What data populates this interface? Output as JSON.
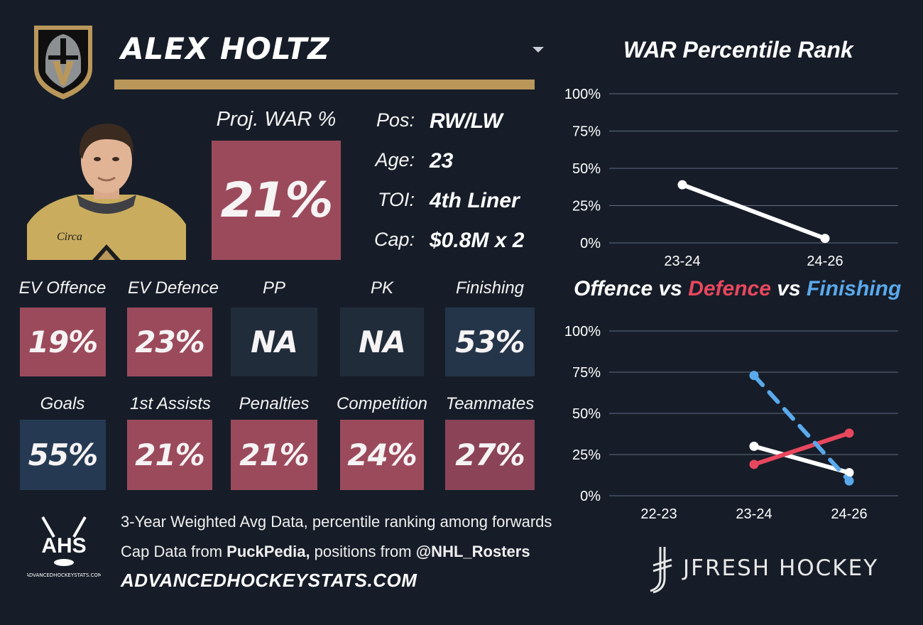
{
  "player": {
    "name": "ALEX HOLTZ",
    "projected_war_label": "Proj. WAR %",
    "projected_war_value": "21%",
    "info": [
      {
        "label": "Pos:",
        "value": "RW/LW"
      },
      {
        "label": "Age:",
        "value": "23"
      },
      {
        "label": "TOI:",
        "value": "4th Liner"
      },
      {
        "label": "Cap:",
        "value": "$0.8M x 2"
      }
    ]
  },
  "stats_row1": [
    {
      "label": "EV Offence",
      "value": "19%",
      "color": "#9b4a5c"
    },
    {
      "label": "EV Defence",
      "value": "23%",
      "color": "#9b4a5c"
    },
    {
      "label": "PP",
      "value": "NA",
      "color": "#212c3a"
    },
    {
      "label": "PK",
      "value": "NA",
      "color": "#212c3a"
    },
    {
      "label": "Finishing",
      "value": "53%",
      "color": "#243449"
    }
  ],
  "stats_row2": [
    {
      "label": "Goals",
      "value": "55%",
      "color": "#253a52"
    },
    {
      "label": "1st Assists",
      "value": "21%",
      "color": "#9b4a5c"
    },
    {
      "label": "Penalties",
      "value": "21%",
      "color": "#9b4a5c"
    },
    {
      "label": "Competition",
      "value": "24%",
      "color": "#9b4a5c"
    },
    {
      "label": "Teammates",
      "value": "27%",
      "color": "#8a4357"
    }
  ],
  "footer": {
    "line1": "3-Year Weighted Avg Data, percentile ranking among forwards",
    "line2_prefix": "Cap Data from ",
    "line2_bold1": "PuckPedia,",
    "line2_mid": " positions from ",
    "line2_bold2": "@NHL_Rosters",
    "site": "ADVANCEDHOCKEYSTATS.COM",
    "ahs_logo_text": "AHS",
    "ahs_logo_sub": "ADVANCEDHOCKEYSTATS.COM",
    "brand": "JFRESH HOCKEY"
  },
  "colors": {
    "background": "#161d28",
    "gold": "#b9975b",
    "offence_line": "#ffffff",
    "defence_line": "#e8475e",
    "finishing_line": "#5aa9ec"
  },
  "chart_data": [
    {
      "type": "line",
      "title": "WAR Percentile Rank",
      "categories": [
        "23-24",
        "24-26"
      ],
      "series": [
        {
          "values": [
            39,
            3
          ],
          "color": "#ffffff"
        }
      ],
      "ylim": [
        0,
        100
      ],
      "yticks": [
        "0%",
        "25%",
        "50%",
        "75%",
        "100%"
      ],
      "grid": true
    },
    {
      "type": "line",
      "title_parts": [
        {
          "text": "Offence",
          "color": "#ffffff"
        },
        {
          "text": " vs ",
          "color": "#ffffff"
        },
        {
          "text": "Defence",
          "color": "#e8475e"
        },
        {
          "text": " vs ",
          "color": "#ffffff"
        },
        {
          "text": "Finishing",
          "color": "#5aa9ec"
        }
      ],
      "categories": [
        "22-23",
        "23-24",
        "24-26"
      ],
      "series": [
        {
          "name": "Offence",
          "values": [
            null,
            30,
            14
          ],
          "color": "#ffffff",
          "dash": false
        },
        {
          "name": "Defence",
          "values": [
            null,
            19,
            38
          ],
          "color": "#e8475e",
          "dash": false
        },
        {
          "name": "Finishing",
          "values": [
            null,
            73,
            9
          ],
          "color": "#5aa9ec",
          "dash": true
        }
      ],
      "ylim": [
        0,
        100
      ],
      "yticks": [
        "0%",
        "25%",
        "50%",
        "75%",
        "100%"
      ],
      "grid": true
    }
  ]
}
